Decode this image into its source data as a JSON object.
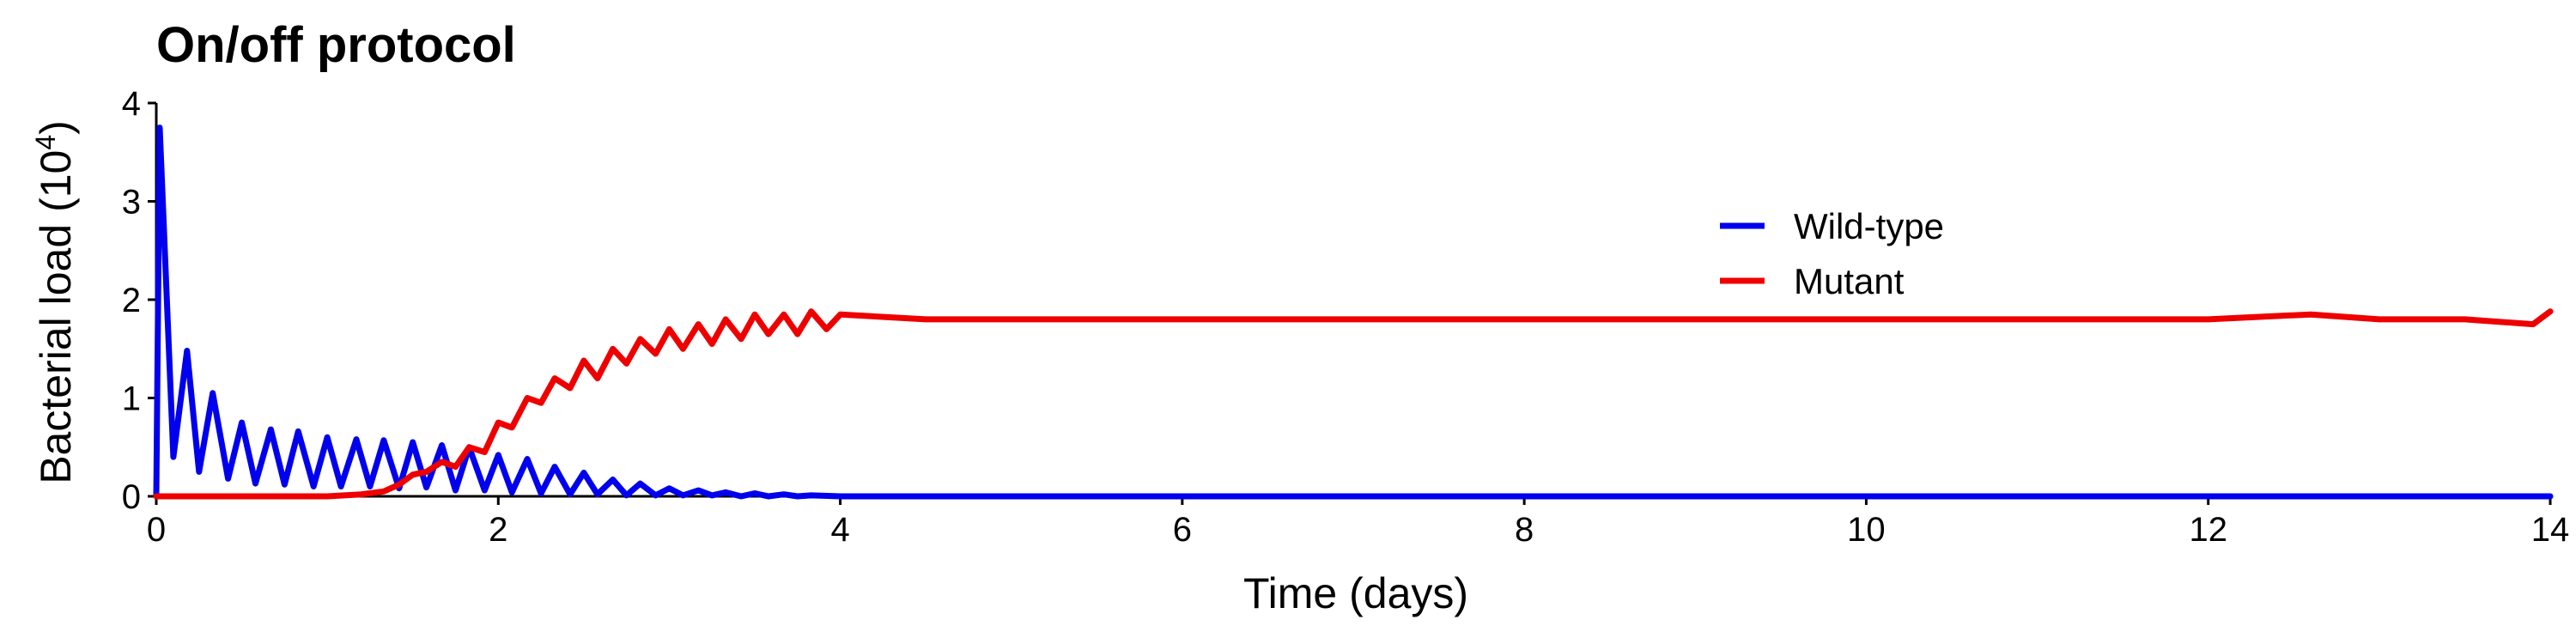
{
  "chart_data": {
    "type": "line",
    "title": "On/off protocol",
    "xlabel": "Time (days)",
    "ylabel_main": "Bacterial load",
    "ylabel_base": "10",
    "ylabel_exp": "4",
    "xlim": [
      0,
      14
    ],
    "ylim": [
      0,
      4
    ],
    "xticks": [
      0,
      2,
      4,
      6,
      8,
      10,
      12,
      14
    ],
    "yticks": [
      0,
      1,
      2,
      3,
      4
    ],
    "grid": false,
    "legend_position": "upper-right",
    "colors": {
      "wild_type": "#0000ee",
      "mutant": "#ee0000"
    },
    "series": [
      {
        "name": "Wild-type",
        "color": "#0000ee",
        "x": [
          0.0,
          0.02,
          0.1,
          0.18,
          0.25,
          0.33,
          0.42,
          0.5,
          0.58,
          0.67,
          0.75,
          0.83,
          0.92,
          1.0,
          1.08,
          1.17,
          1.25,
          1.33,
          1.42,
          1.5,
          1.58,
          1.67,
          1.75,
          1.83,
          1.92,
          2.0,
          2.08,
          2.17,
          2.25,
          2.33,
          2.42,
          2.5,
          2.58,
          2.67,
          2.75,
          2.83,
          2.92,
          3.0,
          3.08,
          3.17,
          3.25,
          3.33,
          3.42,
          3.5,
          3.58,
          3.67,
          3.75,
          3.83,
          4.0,
          6.0,
          8.0,
          10.0,
          12.0,
          14.0
        ],
        "values": [
          0.0,
          3.75,
          0.4,
          1.48,
          0.25,
          1.05,
          0.18,
          0.75,
          0.13,
          0.68,
          0.12,
          0.66,
          0.1,
          0.6,
          0.1,
          0.58,
          0.1,
          0.57,
          0.08,
          0.55,
          0.09,
          0.52,
          0.06,
          0.5,
          0.06,
          0.42,
          0.04,
          0.38,
          0.03,
          0.3,
          0.02,
          0.24,
          0.02,
          0.17,
          0.01,
          0.13,
          0.01,
          0.08,
          0.01,
          0.06,
          0.01,
          0.04,
          0.0,
          0.03,
          0.0,
          0.02,
          0.0,
          0.01,
          0.0,
          0.0,
          0.0,
          0.0,
          0.0,
          0.0
        ]
      },
      {
        "name": "Mutant",
        "color": "#ee0000",
        "x": [
          0.0,
          1.0,
          1.2,
          1.33,
          1.42,
          1.5,
          1.58,
          1.67,
          1.75,
          1.83,
          1.92,
          2.0,
          2.08,
          2.17,
          2.25,
          2.33,
          2.42,
          2.5,
          2.58,
          2.67,
          2.75,
          2.83,
          2.92,
          3.0,
          3.08,
          3.17,
          3.25,
          3.33,
          3.42,
          3.5,
          3.58,
          3.67,
          3.75,
          3.83,
          3.92,
          4.0,
          4.5,
          5.0,
          6.0,
          8.0,
          10.0,
          12.0,
          12.6,
          13.0,
          13.5,
          13.9,
          14.0
        ],
        "values": [
          0.0,
          0.0,
          0.02,
          0.05,
          0.12,
          0.22,
          0.25,
          0.35,
          0.3,
          0.5,
          0.45,
          0.75,
          0.7,
          1.0,
          0.95,
          1.2,
          1.1,
          1.38,
          1.2,
          1.5,
          1.35,
          1.6,
          1.45,
          1.7,
          1.5,
          1.75,
          1.55,
          1.8,
          1.6,
          1.85,
          1.65,
          1.85,
          1.65,
          1.88,
          1.7,
          1.85,
          1.8,
          1.8,
          1.8,
          1.8,
          1.8,
          1.8,
          1.85,
          1.8,
          1.8,
          1.75,
          1.88
        ]
      }
    ]
  }
}
